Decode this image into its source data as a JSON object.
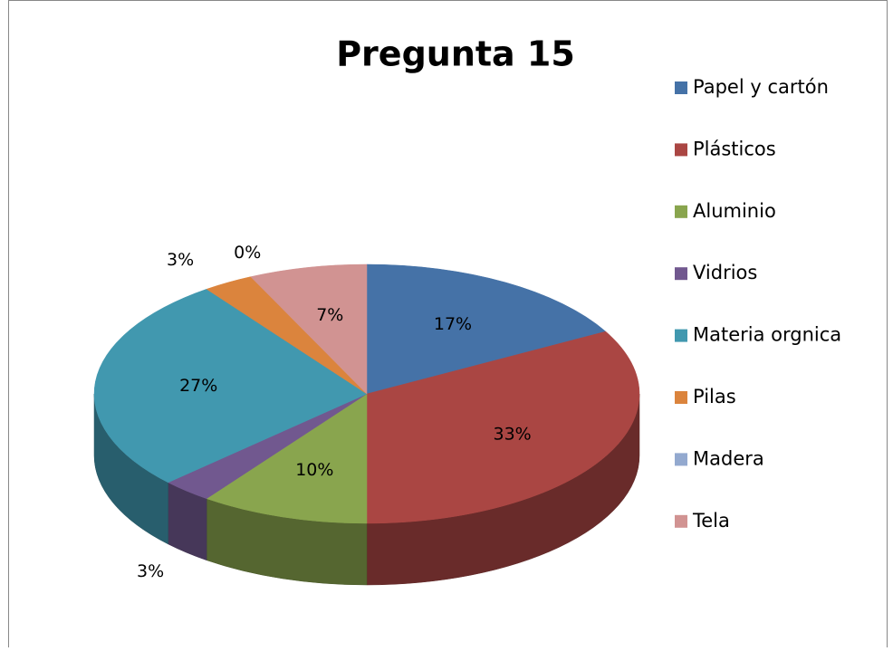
{
  "chart_data": {
    "type": "pie",
    "title": "Pregunta 15",
    "categories": [
      "Papel y cartón",
      "Plásticos",
      "Aluminio",
      "Vidrios",
      "Materia orgnica",
      "Pilas",
      "Madera",
      "Tela"
    ],
    "values": [
      17,
      33,
      10,
      3,
      27,
      3,
      0,
      7
    ],
    "value_labels": [
      "17%",
      "33%",
      "10%",
      "3%",
      "27%",
      "3%",
      "0%",
      "7%"
    ],
    "colors": [
      "#4572a7",
      "#aa4643",
      "#89a54e",
      "#71588f",
      "#4198af",
      "#db843d",
      "#93a9cf",
      "#d19392"
    ],
    "legend": "right"
  }
}
